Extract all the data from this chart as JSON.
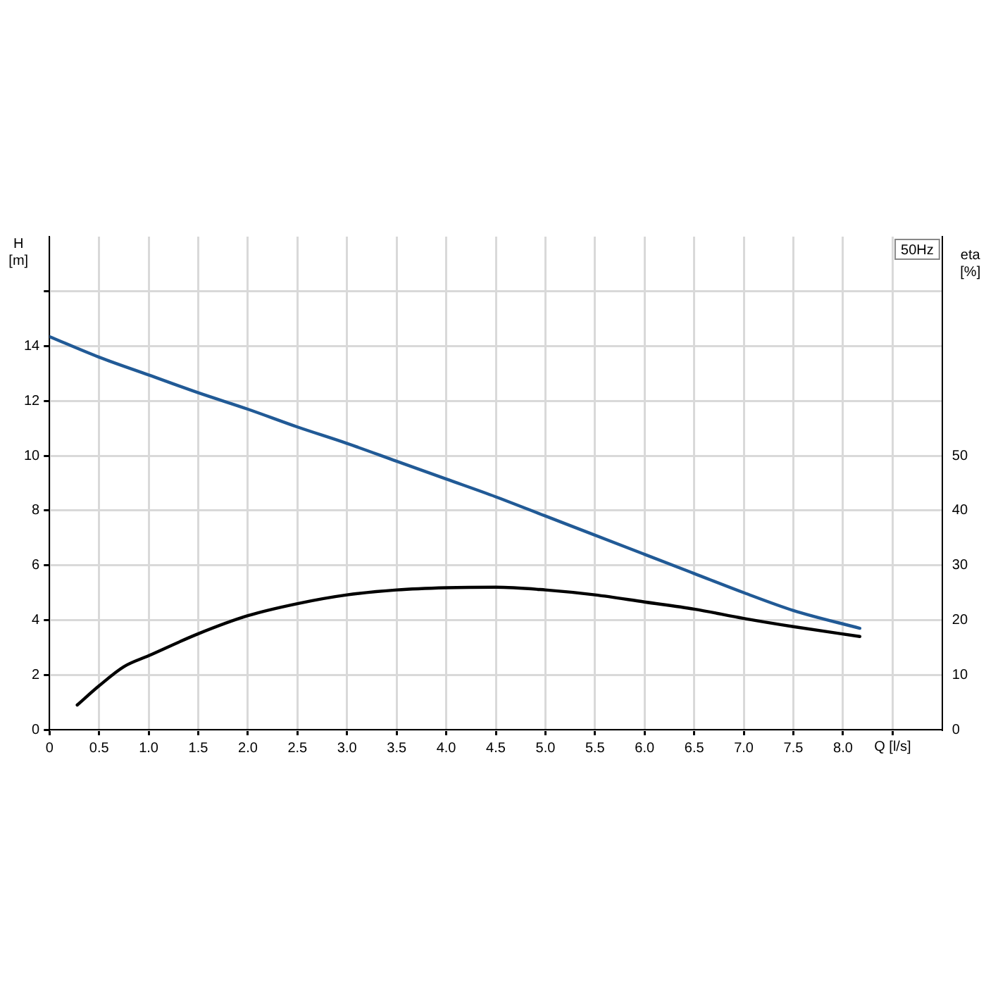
{
  "chart_data": {
    "type": "line",
    "xlabel": "Q [l/s]",
    "ylabel": "H [m]",
    "y2label": "eta [%]",
    "annotations": [
      "50Hz"
    ],
    "xlim": [
      0,
      9
    ],
    "xticks": [
      0,
      {
        "value": 0.5,
        "label": "0.5"
      },
      {
        "value": 1,
        "label": "1.0"
      },
      {
        "value": 1.5,
        "label": "1.5"
      },
      {
        "value": 2,
        "label": "2.0"
      },
      {
        "value": 2.5,
        "label": "2.5"
      },
      {
        "value": 3,
        "label": "3.0"
      },
      {
        "value": 3.5,
        "label": "3.5"
      },
      {
        "value": 4,
        "label": "4.0"
      },
      {
        "value": 4.5,
        "label": "4.5"
      },
      {
        "value": 5,
        "label": "5.0"
      },
      {
        "value": 5.5,
        "label": "5.5"
      },
      {
        "value": 6,
        "label": "6.0"
      },
      {
        "value": 6.5,
        "label": "6.5"
      },
      {
        "value": 7,
        "label": "7.0"
      },
      {
        "value": 7.5,
        "label": "7.5"
      },
      {
        "value": 8,
        "label": "8.0"
      },
      {
        "value": 8.5,
        "label": null
      }
    ],
    "ylim": [
      0,
      18
    ],
    "yticks": [
      0,
      2,
      4,
      6,
      8,
      10,
      12,
      14,
      {
        "value": 16,
        "label": null
      }
    ],
    "y2lim": [
      0,
      90
    ],
    "y2ticks": [
      0,
      10,
      20,
      30,
      40,
      50
    ],
    "grid": true,
    "marker": "none",
    "line_style": "solid",
    "series": [
      {
        "color": "#215a96",
        "x": [
          0,
          0.5,
          1,
          1.5,
          2,
          2.5,
          3,
          3.5,
          4,
          4.5,
          5,
          5.5,
          6,
          6.5,
          7,
          7.5,
          8.17
        ],
        "values": [
          14.35,
          13.6,
          12.95,
          12.3,
          11.7,
          11.05,
          10.45,
          9.8,
          9.15,
          8.5,
          7.8,
          7.1,
          6.4,
          5.7,
          5.0,
          4.35,
          3.7
        ]
      },
      {
        "color": "#000000",
        "axis": "y2",
        "x": [
          0.28,
          0.5,
          0.75,
          1,
          1.5,
          2,
          2.5,
          3,
          3.5,
          4,
          4.5,
          5,
          5.5,
          6,
          6.5,
          7,
          7.5,
          8.17
        ],
        "values": [
          4.5,
          8,
          11.5,
          13.5,
          17.5,
          20.8,
          23,
          24.6,
          25.5,
          25.9,
          26,
          25.5,
          24.6,
          23.3,
          22,
          20.3,
          18.8,
          17
        ]
      }
    ]
  }
}
